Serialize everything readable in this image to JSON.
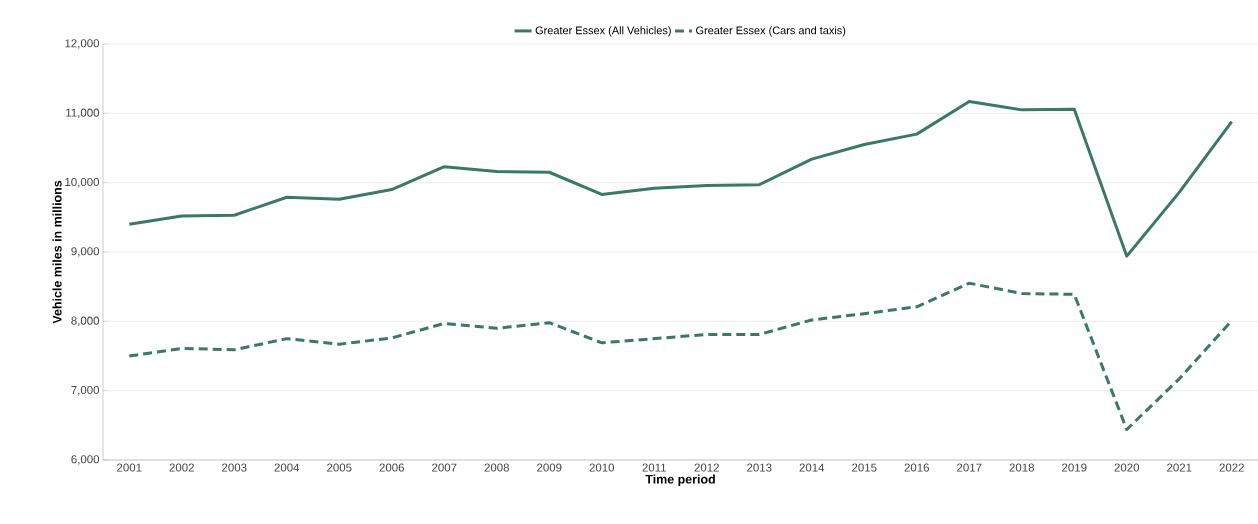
{
  "chart_data": {
    "type": "line",
    "xlabel": "Time period",
    "ylabel": "Vehicle miles in millions",
    "categories": [
      "2001",
      "2002",
      "2003",
      "2004",
      "2005",
      "2006",
      "2007",
      "2008",
      "2009",
      "2010",
      "2011",
      "2012",
      "2013",
      "2014",
      "2015",
      "2016",
      "2017",
      "2018",
      "2019",
      "2020",
      "2021",
      "2022"
    ],
    "series": [
      {
        "name": "Greater Essex (All Vehicles)",
        "color": "#3a7a62",
        "line_style": "solid",
        "values": [
          9400,
          9520,
          9530,
          9790,
          9760,
          9900,
          10230,
          10160,
          10150,
          9830,
          9920,
          9960,
          9970,
          10340,
          10550,
          10700,
          11170,
          11050,
          11060,
          8940,
          9860,
          10880
        ]
      },
      {
        "name": "Greater Essex (Cars and taxis)",
        "color": "#3a7a62",
        "line_style": "dashed",
        "values": [
          7500,
          7610,
          7590,
          7750,
          7670,
          7760,
          7970,
          7900,
          7980,
          7690,
          7750,
          7810,
          7810,
          8020,
          8110,
          8210,
          8550,
          8400,
          8390,
          6440,
          7170,
          8010
        ]
      }
    ],
    "ylim": [
      6000,
      12000
    ],
    "yticks": [
      {
        "value": 6000,
        "label": "6,000"
      },
      {
        "value": 7000,
        "label": "7,000"
      },
      {
        "value": 8000,
        "label": "8,000"
      },
      {
        "value": 9000,
        "label": "9,000"
      },
      {
        "value": 10000,
        "label": "10,000"
      },
      {
        "value": 11000,
        "label": "11,000"
      },
      {
        "value": 12000,
        "label": "12,000"
      }
    ],
    "grid": "y",
    "legend": "top",
    "marker": "none"
  }
}
